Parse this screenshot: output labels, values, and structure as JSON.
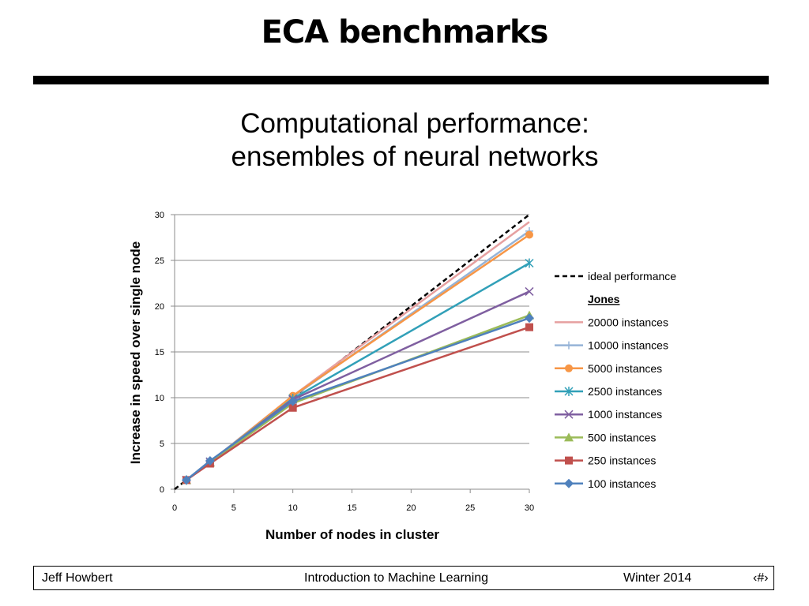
{
  "slide": {
    "title": "ECA benchmarks",
    "subtitle_line1": "Computational performance:",
    "subtitle_line2": "ensembles of neural networks"
  },
  "footer": {
    "author": "Jeff Howbert",
    "course": "Introduction to Machine Learning",
    "term": "Winter 2014",
    "page": "‹#›"
  },
  "chart_data": {
    "type": "line",
    "xlabel": "Number of nodes in cluster",
    "ylabel": "Increase in speed over single node",
    "xlim": [
      0,
      30
    ],
    "ylim": [
      0,
      30
    ],
    "xticks": [
      0,
      5,
      10,
      15,
      20,
      25,
      30
    ],
    "yticks": [
      0,
      5,
      10,
      15,
      20,
      25,
      30
    ],
    "grid": "horizontal",
    "legend_position": "right",
    "legend_group_label": "Jones",
    "x": [
      1,
      3,
      10,
      30
    ],
    "ideal": {
      "name": "ideal performance",
      "x": [
        0,
        30
      ],
      "values": [
        0,
        30
      ],
      "color": "#000000",
      "dash": true
    },
    "series": [
      {
        "name": "20000 instances",
        "values": [
          1,
          3,
          10.2,
          29.2
        ],
        "color": "#E6A0A0",
        "marker": "none"
      },
      {
        "name": "10000 instances",
        "values": [
          1,
          3,
          10.1,
          28.2
        ],
        "color": "#95B3D7",
        "marker": "plus"
      },
      {
        "name": "5000 instances",
        "values": [
          1,
          2.9,
          10.2,
          27.8
        ],
        "color": "#F79646",
        "marker": "circle"
      },
      {
        "name": "2500 instances",
        "values": [
          1,
          3,
          9.9,
          24.7
        ],
        "color": "#31A0B8",
        "marker": "star"
      },
      {
        "name": "1000 instances",
        "values": [
          1,
          3,
          9.8,
          21.6
        ],
        "color": "#7F5FA0",
        "marker": "x"
      },
      {
        "name": "500 instances",
        "values": [
          1,
          2.9,
          9.4,
          19.0
        ],
        "color": "#9BBB59",
        "marker": "triangle"
      },
      {
        "name": "250 instances",
        "values": [
          1,
          2.8,
          8.9,
          17.7
        ],
        "color": "#C0504D",
        "marker": "square"
      },
      {
        "name": "100 instances",
        "values": [
          1,
          3.1,
          9.6,
          18.7
        ],
        "color": "#4F81BD",
        "marker": "diamond"
      }
    ]
  }
}
